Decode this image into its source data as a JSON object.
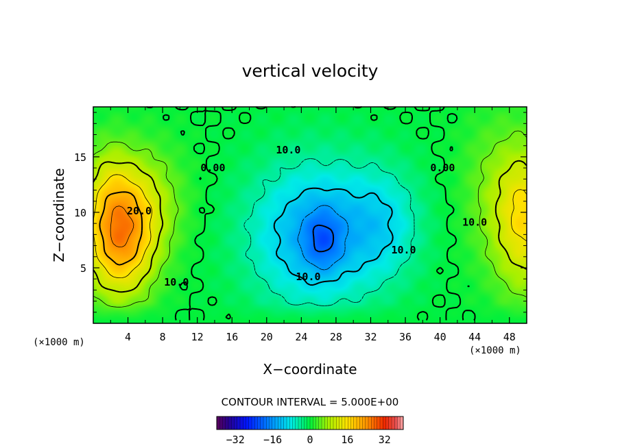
{
  "chart_data": {
    "type": "heatmap",
    "title": "vertical velocity",
    "xlabel": "X−coordinate",
    "ylabel": "Z−coordinate",
    "x_unit": "(×1000 m)",
    "z_unit": "(×1000 m)",
    "xlim": [
      0,
      50
    ],
    "ylim": [
      0,
      19.5
    ],
    "x_ticks": [
      "4",
      "8",
      "12",
      "16",
      "20",
      "24",
      "28",
      "32",
      "36",
      "40",
      "44",
      "48"
    ],
    "x_tick_values": [
      4,
      8,
      12,
      16,
      20,
      24,
      28,
      32,
      36,
      40,
      44,
      48
    ],
    "y_ticks": [
      "5",
      "10",
      "15"
    ],
    "y_tick_values": [
      5,
      10,
      15
    ],
    "contour_interval_text": "CONTOUR INTERVAL = 5.000E+00",
    "contour_interval": 5.0,
    "contour_labels": [
      {
        "text": "20.0",
        "x": 5.3,
        "z": 9.8
      },
      {
        "text": "10.0",
        "x": 9.6,
        "z": 3.4
      },
      {
        "text": "0.00",
        "x": 13.8,
        "z": 13.7
      },
      {
        "text": "10.0",
        "x": 22.5,
        "z": 15.3
      },
      {
        "text": "10.0",
        "x": 24.8,
        "z": 3.9
      },
      {
        "text": "10.0",
        "x": 35.8,
        "z": 6.3
      },
      {
        "text": "0.00",
        "x": 40.3,
        "z": 13.7
      },
      {
        "text": "10.0",
        "x": 44.0,
        "z": 8.8
      }
    ],
    "colorbar": {
      "min": -40,
      "max": 40,
      "ticks": [
        "−32",
        "−16",
        "0",
        "16",
        "32"
      ],
      "tick_values": [
        -32,
        -16,
        0,
        16,
        32
      ]
    },
    "features": [
      {
        "name": "updraft-left",
        "x": 3,
        "z": 8,
        "peak": 27
      },
      {
        "name": "downdraft-center",
        "x": 26,
        "z": 8,
        "peak": -20
      },
      {
        "name": "updraft-right",
        "x": 49.5,
        "z": 9.5,
        "peak": 15
      }
    ]
  }
}
